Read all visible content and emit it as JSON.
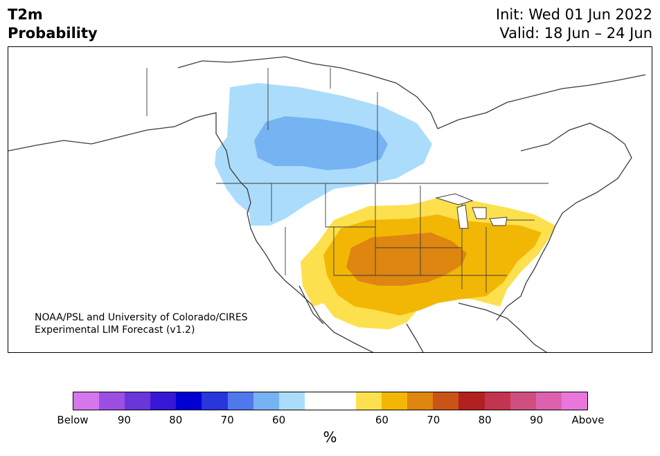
{
  "title": {
    "variable": "T2m",
    "type": "Probability",
    "init": "Init: Wed 01 Jun 2022",
    "valid": "Valid: 18 Jun – 24 Jun"
  },
  "map": {
    "credit_line1": "NOAA/PSL and University of Colorado/CIRES",
    "credit_line2": "Experimental LIM Forecast (v1.2)",
    "below_regions": [
      {
        "name": "northern-plains-canada-light",
        "level": 60,
        "color": "#abdcfb"
      },
      {
        "name": "northern-plains-canada-medium",
        "level": 70,
        "color": "#76b3f2"
      }
    ],
    "above_regions": [
      {
        "name": "central-us-light",
        "level": 60,
        "color": "#fde04d"
      },
      {
        "name": "central-us-medium",
        "level": 70,
        "color": "#f2b705"
      },
      {
        "name": "southern-plains-dark",
        "level": 80,
        "color": "#de8610"
      }
    ]
  },
  "colorbar": {
    "colors": [
      "#d676ec",
      "#9b50e2",
      "#6a36da",
      "#3718d4",
      "#0000d2",
      "#2737dc",
      "#5078ea",
      "#76b3f2",
      "#abdcfb",
      "#ffffff",
      "#ffffff",
      "#fde04d",
      "#f2b705",
      "#de8610",
      "#c85418",
      "#b32020",
      "#c23450",
      "#cf4d80",
      "#dc62b0",
      "#e877dc"
    ],
    "ticks": [
      "Below",
      "90",
      "80",
      "70",
      "60",
      "60",
      "70",
      "80",
      "90",
      "Above"
    ],
    "unit": "%"
  }
}
